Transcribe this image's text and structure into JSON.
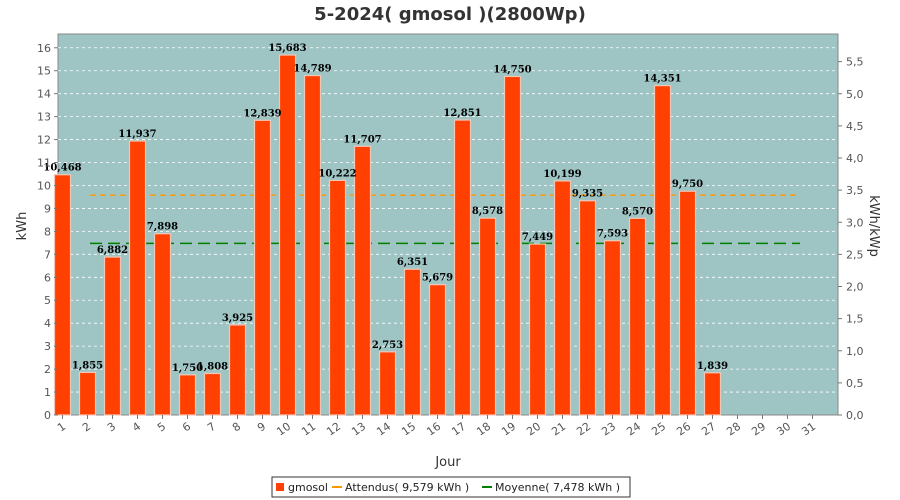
{
  "chart_data": {
    "type": "bar",
    "title": "5-2024( gmosol )(2800Wp)",
    "xlabel": "Jour",
    "ylabel": "kWh",
    "y2label": "kWh/kWp",
    "categories": [
      "1",
      "2",
      "3",
      "4",
      "5",
      "6",
      "7",
      "8",
      "9",
      "10",
      "11",
      "12",
      "13",
      "14",
      "15",
      "16",
      "17",
      "18",
      "19",
      "20",
      "21",
      "22",
      "23",
      "24",
      "25",
      "26",
      "27",
      "28",
      "29",
      "30",
      "31"
    ],
    "series": [
      {
        "name": "gmosol",
        "color": "#ff4000",
        "values": [
          10.468,
          1.855,
          6.882,
          11.937,
          7.898,
          1.75,
          1.808,
          3.925,
          12.839,
          15.683,
          14.789,
          10.222,
          11.707,
          2.753,
          6.351,
          5.679,
          12.851,
          8.578,
          14.75,
          7.449,
          10.199,
          9.335,
          7.593,
          8.57,
          14.351,
          9.75,
          1.839,
          null,
          null,
          null,
          null
        ],
        "labels": [
          "10,468",
          "1,855",
          "6,882",
          "11,937",
          "7,898",
          "1,750",
          "1,808",
          "3,925",
          "12,839",
          "15,683",
          "14,789",
          "10,222",
          "11,707",
          "2,753",
          "6,351",
          "5,679",
          "12,851",
          "8,578",
          "14,750",
          "7,449",
          "10,199",
          "9,335",
          "7,593",
          "8,570",
          "14,351",
          "9,750",
          "1,839",
          "",
          "",
          "",
          ""
        ]
      }
    ],
    "reference_lines": [
      {
        "name": "Attendus( 9,579 kWh )",
        "value": 9.579,
        "color": "#ff9900",
        "style": "dashed"
      },
      {
        "name": "Moyenne( 7,478 kWh )",
        "value": 7.478,
        "color": "#008000",
        "style": "dashed"
      }
    ],
    "ylim": [
      0,
      16.6
    ],
    "yticks": [
      "0",
      "1",
      "2",
      "3",
      "4",
      "5",
      "6",
      "7",
      "8",
      "9",
      "10",
      "11",
      "12",
      "13",
      "14",
      "15",
      "16"
    ],
    "y2lim": [
      0,
      5.93
    ],
    "y2ticks": [
      "0,0",
      "0,5",
      "1,0",
      "1,5",
      "2,0",
      "2,5",
      "3,0",
      "3,5",
      "4,0",
      "4,5",
      "5,0",
      "5,5"
    ],
    "plot_background": "#9ec4c4",
    "grid": true,
    "legend_position": "bottom"
  }
}
